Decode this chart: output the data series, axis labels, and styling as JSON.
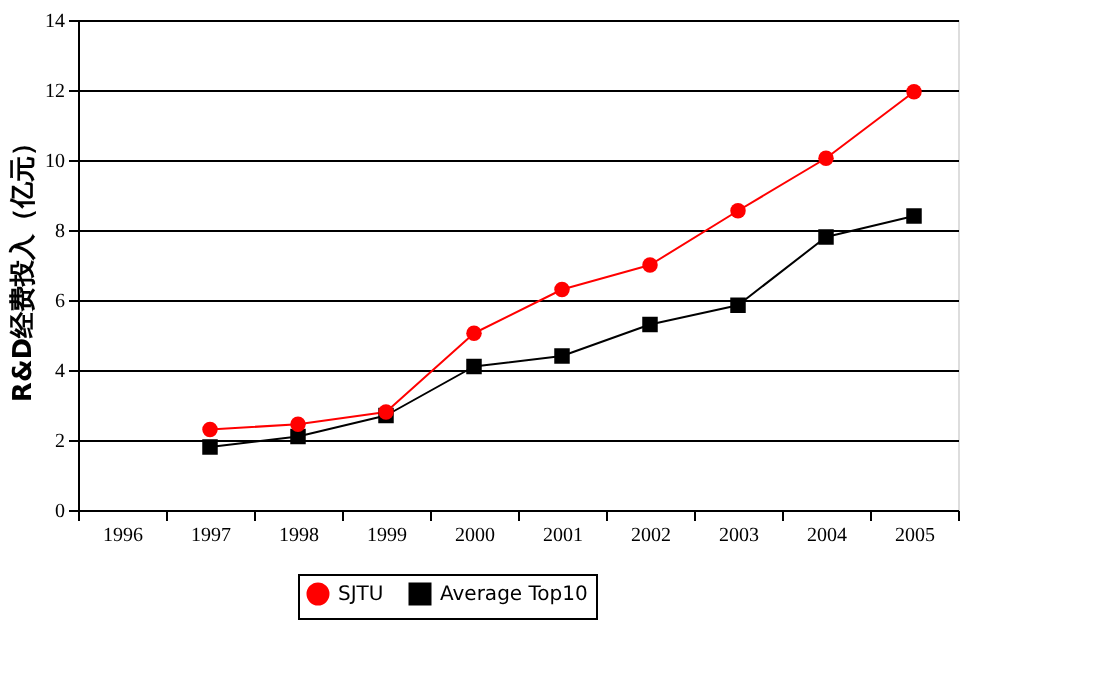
{
  "chart_data": {
    "type": "line",
    "ylabel": "R&D经费投入（亿元）",
    "categories": [
      "1996",
      "1997",
      "1998",
      "1999",
      "2000",
      "2001",
      "2002",
      "2003",
      "2004",
      "2005"
    ],
    "series": [
      {
        "name": "SJTU",
        "color": "#ff0000",
        "marker": "circle",
        "values": [
          null,
          2.3,
          2.45,
          2.8,
          5.05,
          6.3,
          7.0,
          8.55,
          10.05,
          11.95
        ]
      },
      {
        "name": "Average Top10",
        "color": "#000000",
        "marker": "square",
        "values": [
          null,
          1.8,
          2.1,
          2.7,
          4.1,
          4.4,
          5.3,
          5.85,
          7.8,
          8.4
        ]
      }
    ],
    "ylim": [
      0,
      14
    ],
    "yticks": [
      0,
      2,
      4,
      6,
      8,
      10,
      12,
      14
    ],
    "grid": "y",
    "legend": "bottom"
  }
}
